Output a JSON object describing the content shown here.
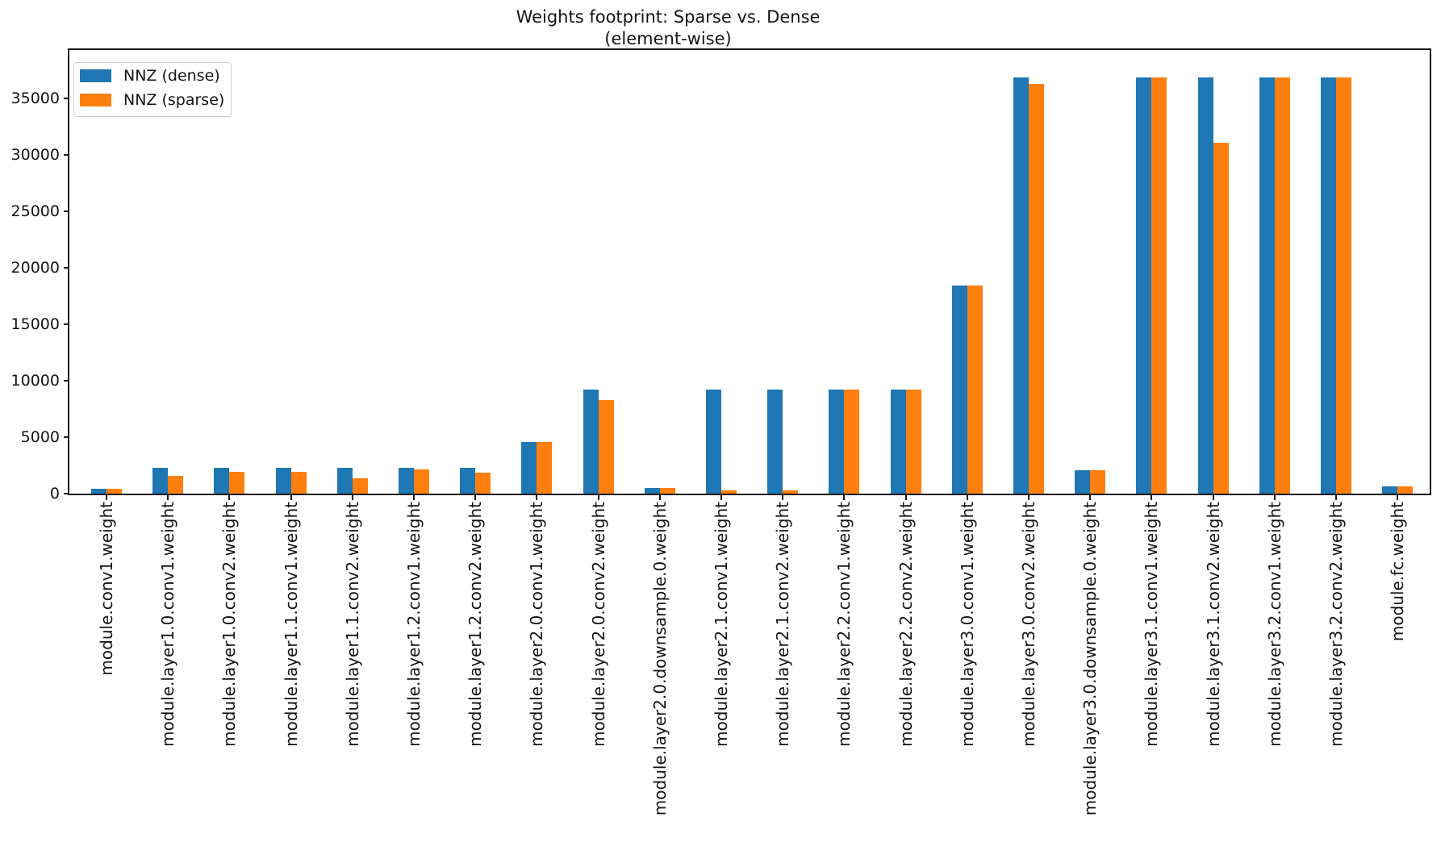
{
  "title": {
    "line1": "Weights footprint: Sparse vs. Dense",
    "line2": "(element-wise)"
  },
  "chart_data": {
    "type": "bar",
    "title": "Weights footprint: Sparse vs. Dense (element-wise)",
    "xlabel": "",
    "ylabel": "",
    "grid": false,
    "legend_position": "upper left",
    "xtick_rotation": 90,
    "ylim": [
      0,
      39300
    ],
    "yticks": [
      0,
      5000,
      10000,
      15000,
      20000,
      25000,
      30000,
      35000
    ],
    "categories": [
      "module.conv1.weight",
      "module.layer1.0.conv1.weight",
      "module.layer1.0.conv2.weight",
      "module.layer1.1.conv1.weight",
      "module.layer1.1.conv2.weight",
      "module.layer1.2.conv1.weight",
      "module.layer1.2.conv2.weight",
      "module.layer2.0.conv1.weight",
      "module.layer2.0.conv2.weight",
      "module.layer2.0.downsample.0.weight",
      "module.layer2.1.conv1.weight",
      "module.layer2.1.conv2.weight",
      "module.layer2.2.conv1.weight",
      "module.layer2.2.conv2.weight",
      "module.layer3.0.conv1.weight",
      "module.layer3.0.conv2.weight",
      "module.layer3.0.downsample.0.weight",
      "module.layer3.1.conv1.weight",
      "module.layer3.1.conv2.weight",
      "module.layer3.2.conv1.weight",
      "module.layer3.2.conv2.weight",
      "module.fc.weight"
    ],
    "series": [
      {
        "name": "NNZ (dense)",
        "color": "#1f77b4",
        "values": [
          432,
          2304,
          2304,
          2304,
          2304,
          2304,
          2304,
          4608,
          9216,
          512,
          9216,
          9216,
          9216,
          9216,
          18432,
          36864,
          2048,
          36864,
          36864,
          36864,
          36864,
          640
        ]
      },
      {
        "name": "NNZ (sparse)",
        "color": "#ff7f0e",
        "values": [
          432,
          1550,
          1920,
          1900,
          1330,
          2140,
          1870,
          4608,
          8310,
          512,
          300,
          300,
          9216,
          9216,
          18432,
          36270,
          2048,
          36864,
          31050,
          36864,
          36864,
          640
        ]
      }
    ]
  }
}
